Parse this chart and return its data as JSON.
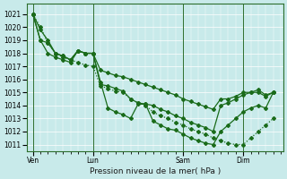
{
  "title": "",
  "xlabel": "Pression niveau de la mer( hPa )",
  "ylabel": "",
  "bg_color": "#c8eaea",
  "grid_color": "#ffffff",
  "line_color": "#1a6b1a",
  "ylim": [
    1011,
    1021.5
  ],
  "yticks": [
    1011,
    1012,
    1013,
    1014,
    1015,
    1016,
    1017,
    1018,
    1019,
    1020,
    1021
  ],
  "xtick_labels": [
    "Ven",
    "Lun",
    "Sam",
    "Dim"
  ],
  "xtick_positions": [
    0,
    48,
    120,
    168
  ],
  "vline_positions": [
    0,
    48,
    120,
    168
  ],
  "lines": [
    {
      "x": [
        0,
        6,
        12,
        18,
        24,
        30,
        36,
        42,
        48,
        54,
        60,
        66,
        72,
        78,
        84,
        90,
        96,
        102,
        108,
        114,
        120,
        126,
        132,
        138,
        144,
        150,
        156,
        162,
        168,
        174,
        180,
        186,
        192
      ],
      "y": [
        1021,
        1020,
        1018.8,
        1018,
        1017.7,
        1017.5,
        1017.3,
        1017.1,
        1017,
        1015.5,
        1015.3,
        1015.1,
        1015,
        1014.5,
        1014.2,
        1014,
        1013.5,
        1013.2,
        1013,
        1012.7,
        1012.5,
        1012.2,
        1012,
        1011.8,
        1011.5,
        1011.3,
        1011.1,
        1011.0,
        1011.0,
        1011.5,
        1012,
        1012.5,
        1013
      ]
    },
    {
      "x": [
        0,
        6,
        12,
        18,
        24,
        30,
        36,
        42,
        48,
        54,
        60,
        66,
        72,
        78,
        84,
        90,
        96,
        102,
        108,
        114,
        120,
        126,
        132,
        138,
        144,
        150,
        156,
        162,
        168,
        174,
        180,
        186,
        192
      ],
      "y": [
        1021,
        1019,
        1018,
        1017.7,
        1017.5,
        1017.3,
        1018.2,
        1018,
        1018,
        1015.8,
        1013.8,
        1013.5,
        1013.3,
        1013.0,
        1014.1,
        1014.1,
        1012.8,
        1012.5,
        1012.2,
        1012.1,
        1011.8,
        1011.5,
        1011.3,
        1011.1,
        1011.0,
        1012.0,
        1012.5,
        1013.0,
        1013.5,
        1013.8,
        1014.0,
        1013.8,
        1015.0
      ]
    },
    {
      "x": [
        0,
        6,
        12,
        18,
        24,
        30,
        36,
        42,
        48,
        54,
        60,
        66,
        72,
        78,
        84,
        90,
        96,
        102,
        108,
        114,
        120,
        126,
        132,
        138,
        144,
        150,
        156,
        162,
        168,
        174,
        180,
        186,
        192
      ],
      "y": [
        1021,
        1019,
        1018.8,
        1018,
        1017.8,
        1017.5,
        1018.2,
        1018,
        1018,
        1015.6,
        1015.5,
        1015.3,
        1015.1,
        1014.5,
        1014.2,
        1014.1,
        1014.0,
        1013.7,
        1013.5,
        1013.2,
        1013.0,
        1012.7,
        1012.5,
        1012.3,
        1012.0,
        1014.0,
        1014.2,
        1014.5,
        1014.8,
        1015.0,
        1015.2,
        1014.8,
        1015.0
      ]
    },
    {
      "x": [
        0,
        6,
        12,
        18,
        24,
        30,
        36,
        42,
        48,
        54,
        60,
        66,
        72,
        78,
        84,
        90,
        96,
        102,
        108,
        114,
        120,
        126,
        132,
        138,
        144,
        150,
        156,
        162,
        168,
        174,
        180,
        186,
        192
      ],
      "y": [
        1021,
        1019.8,
        1019,
        1018,
        1017.8,
        1017.5,
        1018.2,
        1018,
        1018,
        1016.7,
        1016.5,
        1016.3,
        1016.2,
        1016.0,
        1015.8,
        1015.6,
        1015.4,
        1015.2,
        1015.0,
        1014.8,
        1014.5,
        1014.3,
        1014.1,
        1013.9,
        1013.7,
        1014.5,
        1014.5,
        1014.7,
        1015.0,
        1015.0,
        1015.0,
        1014.7,
        1015.0
      ]
    }
  ]
}
